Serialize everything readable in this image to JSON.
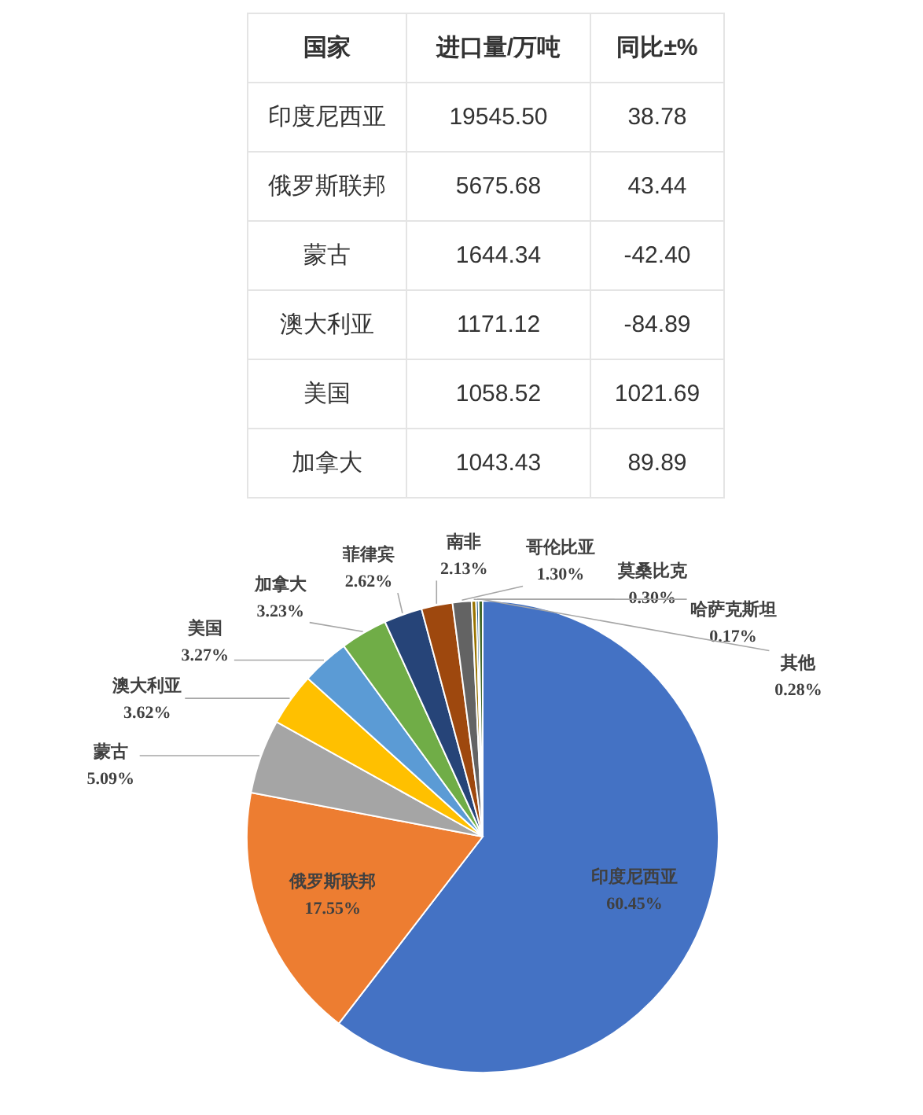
{
  "chart_data": [
    {
      "type": "other",
      "xlabel": "国家",
      "categories": [
        "印度尼西亚",
        "俄罗斯联邦",
        "蒙古",
        "澳大利亚",
        "美国",
        "加拿大"
      ],
      "series": [
        {
          "name": "进口量/万吨",
          "values": [
            19545.5,
            5675.68,
            1644.34,
            1171.12,
            1058.52,
            1043.43
          ],
          "value_labels": [
            "19545.50",
            "5675.68",
            "1644.34",
            "1171.12",
            "1058.52",
            "1043.43"
          ]
        },
        {
          "name": "同比±%",
          "values": [
            38.78,
            43.44,
            -42.4,
            -84.89,
            1021.69,
            89.89
          ],
          "value_labels": [
            "38.78",
            "43.44",
            "-42.40",
            "-84.89",
            "1021.69",
            "89.89"
          ]
        }
      ]
    },
    {
      "type": "pie",
      "categories": [
        "印度尼西亚",
        "俄罗斯联邦",
        "蒙古",
        "澳大利亚",
        "美国",
        "加拿大",
        "菲律宾",
        "南非",
        "哥伦比亚",
        "莫桑比克",
        "哈萨克斯坦",
        "其他"
      ],
      "values": [
        60.45,
        17.55,
        5.09,
        3.62,
        3.27,
        3.23,
        2.62,
        2.13,
        1.3,
        0.3,
        0.17,
        0.28
      ],
      "colors": [
        "#4472c4",
        "#ed7d31",
        "#a5a5a5",
        "#ffc000",
        "#5b9bd5",
        "#70ad47",
        "#264478",
        "#9e480e",
        "#636363",
        "#997300",
        "#255e91",
        "#43682b"
      ],
      "value_labels": [
        "60.45%",
        "17.55%",
        "5.09%",
        "3.62%",
        "3.27%",
        "3.23%",
        "2.62%",
        "2.13%",
        "1.30%",
        "0.30%",
        "0.17%",
        "0.28%"
      ]
    }
  ]
}
